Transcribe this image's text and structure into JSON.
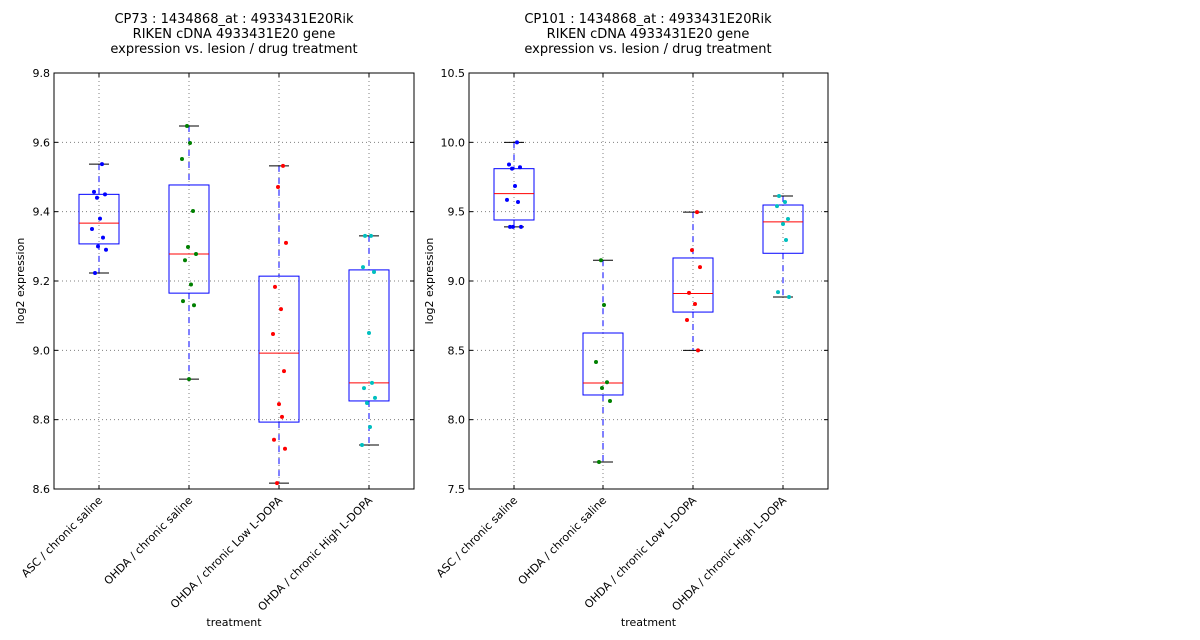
{
  "chart_data": [
    {
      "type": "box",
      "title": [
        "CP73 : 1434868_at : 4933431E20Rik",
        "RIKEN cDNA 4933431E20 gene",
        "expression vs. lesion / drug treatment"
      ],
      "xlabel": "treatment",
      "ylabel": "log2 expression",
      "ylim": [
        8.6,
        9.8
      ],
      "yticks": [
        8.6,
        8.8,
        9.0,
        9.2,
        9.4,
        9.6,
        9.8
      ],
      "ytick_labels": [
        "8.6",
        "8.8",
        "9.0",
        "9.2",
        "9.4",
        "9.6",
        "9.8"
      ],
      "grid": true,
      "categories": [
        "ASC / chronic saline",
        "OHDA / chronic saline",
        "OHDA / chronic Low L-DOPA",
        "OHDA / chronic High L-DOPA"
      ],
      "boxes": [
        {
          "whisker_low": 9.223,
          "q1": 9.307,
          "median": 9.367,
          "q3": 9.45,
          "whisker_high": 9.537
        },
        {
          "whisker_low": 8.917,
          "q1": 9.165,
          "median": 9.278,
          "q3": 9.477,
          "whisker_high": 9.647
        },
        {
          "whisker_low": 8.617,
          "q1": 8.793,
          "median": 8.992,
          "q3": 9.214,
          "whisker_high": 9.532
        },
        {
          "whisker_low": 8.727,
          "q1": 8.854,
          "median": 8.906,
          "q3": 9.232,
          "whisker_high": 9.33
        }
      ],
      "points": [
        [
          9.537,
          9.457,
          9.45,
          9.44,
          9.38,
          9.35,
          9.325,
          9.3,
          9.29,
          9.223
        ],
        [
          9.647,
          9.598,
          9.552,
          9.402,
          9.298,
          9.278,
          9.26,
          9.19,
          9.142,
          9.13,
          8.917
        ],
        [
          9.532,
          9.471,
          9.31,
          9.183,
          9.119,
          9.047,
          8.94,
          8.845,
          8.808,
          8.742,
          8.716,
          8.617
        ],
        [
          9.33,
          9.33,
          9.24,
          9.226,
          9.05,
          8.906,
          8.891,
          8.863,
          8.848,
          8.779,
          8.727
        ]
      ],
      "point_colors": [
        "#0000ff",
        "#008000",
        "#ff0000",
        "#00bfbf"
      ]
    },
    {
      "type": "box",
      "title": [
        "CP101 : 1434868_at : 4933431E20Rik",
        "RIKEN cDNA 4933431E20 gene",
        "expression vs. lesion / drug treatment"
      ],
      "xlabel": "treatment",
      "ylabel": "log2 expression",
      "ylim": [
        7.5,
        10.5
      ],
      "yticks": [
        7.5,
        8.0,
        8.5,
        9.0,
        9.5,
        10.0,
        10.5
      ],
      "ytick_labels": [
        "7.5",
        "8.0",
        "8.5",
        "9.0",
        "9.5",
        "10.0",
        "10.5"
      ],
      "grid": true,
      "categories": [
        "ASC / chronic saline",
        "OHDA / chronic saline",
        "OHDA / chronic Low L-DOPA",
        "OHDA / chronic High L-DOPA"
      ],
      "boxes": [
        {
          "whisker_low": 9.39,
          "q1": 9.44,
          "median": 9.63,
          "q3": 9.81,
          "whisker_high": 10.0
        },
        {
          "whisker_low": 7.695,
          "q1": 8.178,
          "median": 8.264,
          "q3": 8.625,
          "whisker_high": 9.15
        },
        {
          "whisker_low": 8.5,
          "q1": 8.776,
          "median": 8.91,
          "q3": 9.166,
          "whisker_high": 9.497
        },
        {
          "whisker_low": 8.885,
          "q1": 9.2,
          "median": 9.426,
          "q3": 9.548,
          "whisker_high": 9.613
        }
      ],
      "points": [
        [
          10.0,
          9.84,
          9.82,
          9.81,
          9.685,
          9.585,
          9.57,
          9.39,
          9.39,
          9.39
        ],
        [
          9.15,
          8.827,
          8.416,
          8.27,
          8.228,
          8.135,
          7.695
        ],
        [
          9.497,
          9.223,
          9.1,
          8.914,
          8.834,
          8.719,
          8.5
        ],
        [
          9.613,
          9.57,
          9.54,
          9.447,
          9.411,
          9.296,
          8.92,
          8.885
        ]
      ],
      "point_colors": [
        "#0000ff",
        "#008000",
        "#ff0000",
        "#00bfbf"
      ]
    }
  ],
  "colors": {
    "box": "#0000ff",
    "median": "#ff0000",
    "whisker_cap": "#000000",
    "grid": "#808080"
  }
}
